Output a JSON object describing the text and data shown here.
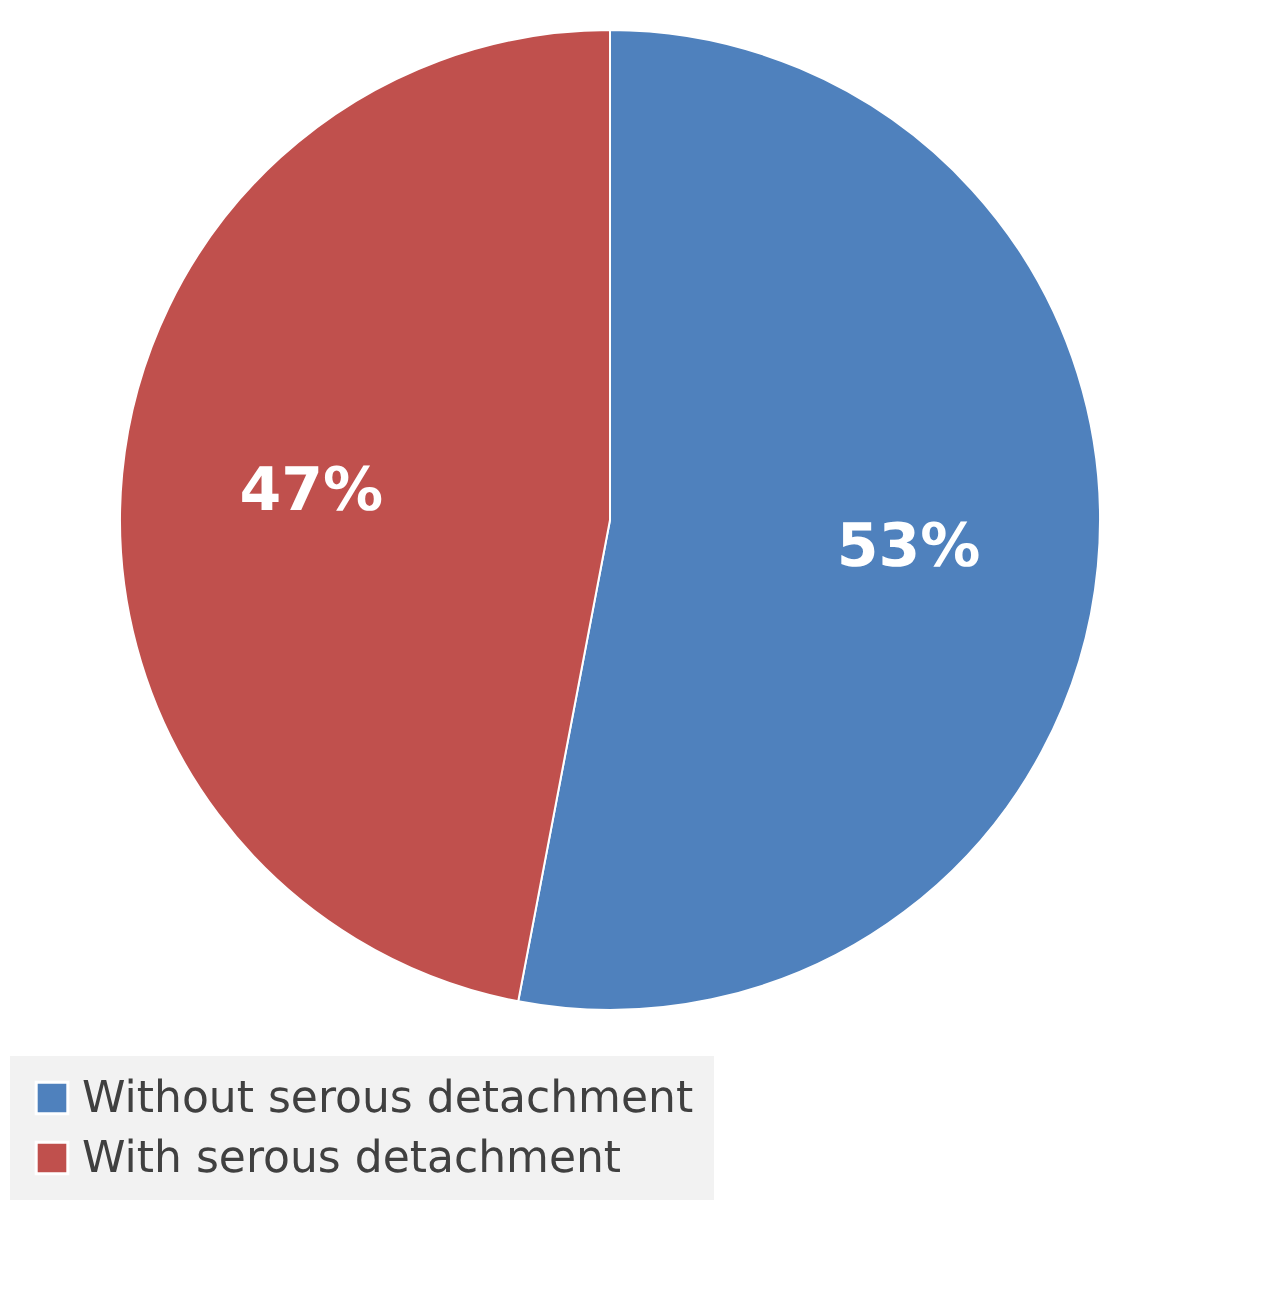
{
  "chart_data": {
    "type": "pie",
    "categories": [
      "Without serous detachment",
      "With serous detachment"
    ],
    "values": [
      53,
      47
    ],
    "colors": [
      "#4f81bd",
      "#c0504d"
    ],
    "value_labels": [
      "53%",
      "47%"
    ],
    "legend": "bottom"
  }
}
